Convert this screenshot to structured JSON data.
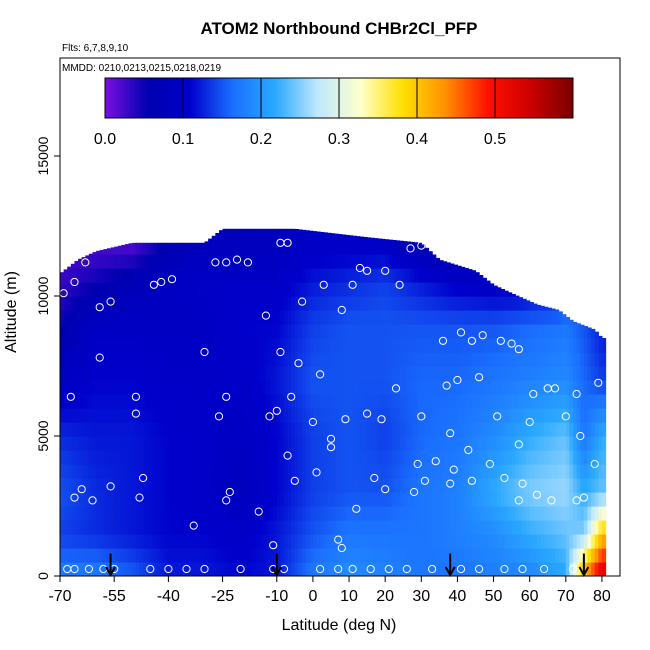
{
  "chart_data": {
    "type": "heatmap",
    "title": "ATOM2 Northbound CHBr2Cl_PFP",
    "flights_note": "Flts: 6,7,8,9,10",
    "dates_note": "MMDD: 0210,0213,0215,0218,0219",
    "xlabel": "Latitude (deg N)",
    "ylabel": "Altitude (m)",
    "xlim": [
      -70,
      85
    ],
    "ylim": [
      0,
      18500
    ],
    "x_ticks": [
      -70,
      -55,
      -40,
      -25,
      -10,
      0,
      10,
      20,
      30,
      40,
      50,
      60,
      70,
      80
    ],
    "y_ticks": [
      0,
      5000,
      10000,
      15000
    ],
    "colorbar": {
      "range": [
        0.0,
        0.6
      ],
      "ticks": [
        "0.0",
        "0.1",
        "0.2",
        "0.3",
        "0.4",
        "0.5"
      ],
      "stops": [
        "#7a10e0",
        "#0000b0",
        "#0000cc",
        "#1a6fff",
        "#2aa8ff",
        "#bfe8ff",
        "#ffffcc",
        "#ffe000",
        "#ff9000",
        "#ff1000",
        "#cc0000",
        "#7a0000"
      ]
    },
    "field": {
      "note": "interpolated mixing ratio field (estimated), value per latitude / altitude node",
      "lats": [
        -70,
        -60,
        -50,
        -40,
        -30,
        -20,
        -10,
        0,
        10,
        20,
        30,
        40,
        50,
        60,
        70,
        75,
        80
      ],
      "alts": [
        250,
        1500,
        3000,
        5000,
        7000,
        9000,
        10500,
        11800
      ],
      "values": [
        [
          0.17,
          0.17,
          0.15,
          0.12,
          0.12,
          0.11,
          0.12,
          0.17,
          0.19,
          0.18,
          0.17,
          0.17,
          0.18,
          0.19,
          0.22,
          0.4,
          0.52
        ],
        [
          0.14,
          0.13,
          0.12,
          0.11,
          0.11,
          0.1,
          0.12,
          0.15,
          0.17,
          0.17,
          0.17,
          0.18,
          0.19,
          0.22,
          0.24,
          0.25,
          0.4
        ],
        [
          0.15,
          0.13,
          0.12,
          0.11,
          0.1,
          0.08,
          0.11,
          0.14,
          0.15,
          0.15,
          0.17,
          0.18,
          0.22,
          0.25,
          0.26,
          0.22,
          0.24
        ],
        [
          0.13,
          0.12,
          0.12,
          0.11,
          0.1,
          0.09,
          0.11,
          0.14,
          0.15,
          0.14,
          0.16,
          0.17,
          0.19,
          0.22,
          0.24,
          0.17,
          0.22
        ],
        [
          0.09,
          0.11,
          0.11,
          0.1,
          0.1,
          0.1,
          0.12,
          0.15,
          0.15,
          0.15,
          0.16,
          0.16,
          0.17,
          0.18,
          0.19,
          0.16,
          0.14
        ],
        [
          0.05,
          0.09,
          0.09,
          0.09,
          0.09,
          0.11,
          0.11,
          0.14,
          0.15,
          0.15,
          0.15,
          0.15,
          0.15,
          0.16,
          0.17,
          0.15,
          0.12
        ],
        [
          0.03,
          0.05,
          0.07,
          0.09,
          0.1,
          0.1,
          0.1,
          0.12,
          0.13,
          0.14,
          0.12,
          0.1,
          0.09,
          0.09,
          0.09,
          0.09,
          0.09
        ],
        [
          0.02,
          0.02,
          0.02,
          0.06,
          0.08,
          0.08,
          0.08,
          0.1,
          0.1,
          0.1,
          0.06,
          0.04,
          0.05,
          0.05,
          0.05,
          0.05,
          0.05
        ]
      ],
      "top_alt_by_lat": [
        [
          -70,
          10800
        ],
        [
          -65,
          11300
        ],
        [
          -60,
          11600
        ],
        [
          -50,
          11900
        ],
        [
          -30,
          11900
        ],
        [
          -25,
          12400
        ],
        [
          -5,
          12400
        ],
        [
          15,
          12100
        ],
        [
          30,
          11900
        ],
        [
          35,
          11300
        ],
        [
          45,
          10900
        ],
        [
          50,
          10400
        ],
        [
          55,
          10100
        ],
        [
          62,
          9700
        ],
        [
          68,
          9500
        ],
        [
          72,
          9100
        ],
        [
          78,
          8800
        ],
        [
          80,
          8500
        ]
      ]
    },
    "samples": [
      [
        -68,
        250
      ],
      [
        -66,
        250
      ],
      [
        -62,
        250
      ],
      [
        -58,
        250
      ],
      [
        -55,
        250
      ],
      [
        -45,
        250
      ],
      [
        -40,
        250
      ],
      [
        -35,
        250
      ],
      [
        -30,
        250
      ],
      [
        -20,
        250
      ],
      [
        -11,
        250
      ],
      [
        -8,
        250
      ],
      [
        2,
        250
      ],
      [
        7,
        250
      ],
      [
        11,
        250
      ],
      [
        16,
        250
      ],
      [
        21,
        250
      ],
      [
        26,
        250
      ],
      [
        33,
        250
      ],
      [
        41,
        250
      ],
      [
        46,
        250
      ],
      [
        53,
        250
      ],
      [
        58,
        250
      ],
      [
        64,
        250
      ],
      [
        72,
        250
      ],
      [
        -66,
        2800
      ],
      [
        -64,
        3100
      ],
      [
        -61,
        2700
      ],
      [
        -56,
        3200
      ],
      [
        -48,
        2800
      ],
      [
        -47,
        3500
      ],
      [
        -33,
        1800
      ],
      [
        -24,
        2700
      ],
      [
        -23,
        3000
      ],
      [
        -15,
        2300
      ],
      [
        -11,
        1100
      ],
      [
        -7,
        4300
      ],
      [
        -5,
        3400
      ],
      [
        1,
        3700
      ],
      [
        7,
        1300
      ],
      [
        8,
        1000
      ],
      [
        12,
        2400
      ],
      [
        17,
        3500
      ],
      [
        20,
        3100
      ],
      [
        28,
        3000
      ],
      [
        29,
        4000
      ],
      [
        31,
        3400
      ],
      [
        34,
        4100
      ],
      [
        38,
        3300
      ],
      [
        39,
        3800
      ],
      [
        44,
        3400
      ],
      [
        49,
        4000
      ],
      [
        53,
        3500
      ],
      [
        57,
        2700
      ],
      [
        58,
        3300
      ],
      [
        62,
        2900
      ],
      [
        66,
        2700
      ],
      [
        73,
        2700
      ],
      [
        75,
        2800
      ],
      [
        78,
        4000
      ],
      [
        -67,
        6400
      ],
      [
        -59,
        7800
      ],
      [
        -49,
        6400
      ],
      [
        -49,
        5800
      ],
      [
        -26,
        5700
      ],
      [
        -24,
        6400
      ],
      [
        -12,
        5700
      ],
      [
        -10,
        5900
      ],
      [
        -6,
        6400
      ],
      [
        -9,
        8000
      ],
      [
        -4,
        7600
      ],
      [
        0,
        5500
      ],
      [
        2,
        7200
      ],
      [
        5,
        4900
      ],
      [
        5,
        4600
      ],
      [
        9,
        5600
      ],
      [
        15,
        5800
      ],
      [
        19,
        5600
      ],
      [
        23,
        6700
      ],
      [
        30,
        5700
      ],
      [
        37,
        6800
      ],
      [
        38,
        5100
      ],
      [
        40,
        7000
      ],
      [
        43,
        4500
      ],
      [
        46,
        7100
      ],
      [
        51,
        5700
      ],
      [
        57,
        4700
      ],
      [
        60,
        5500
      ],
      [
        61,
        6500
      ],
      [
        65,
        6700
      ],
      [
        67,
        6700
      ],
      [
        70,
        5700
      ],
      [
        73,
        6500
      ],
      [
        74,
        5000
      ],
      [
        79,
        6900
      ],
      [
        -69,
        10100
      ],
      [
        -66,
        10500
      ],
      [
        -63,
        11200
      ],
      [
        -59,
        9600
      ],
      [
        -56,
        9800
      ],
      [
        -44,
        10400
      ],
      [
        -42,
        10500
      ],
      [
        -39,
        10600
      ],
      [
        -30,
        8000
      ],
      [
        -27,
        11200
      ],
      [
        -24,
        11200
      ],
      [
        -21,
        11300
      ],
      [
        -18,
        11200
      ],
      [
        -13,
        9300
      ],
      [
        -9,
        11900
      ],
      [
        -7,
        11900
      ],
      [
        -3,
        9800
      ],
      [
        3,
        10400
      ],
      [
        8,
        9500
      ],
      [
        11,
        10400
      ],
      [
        13,
        11000
      ],
      [
        15,
        10900
      ],
      [
        20,
        10900
      ],
      [
        24,
        10400
      ],
      [
        27,
        11700
      ],
      [
        30,
        11800
      ],
      [
        36,
        8400
      ],
      [
        41,
        8700
      ],
      [
        44,
        8400
      ],
      [
        47,
        8600
      ],
      [
        52,
        8400
      ],
      [
        55,
        8300
      ],
      [
        57,
        8100
      ]
    ],
    "arrows_lat": [
      -56,
      -10,
      38,
      75
    ]
  }
}
